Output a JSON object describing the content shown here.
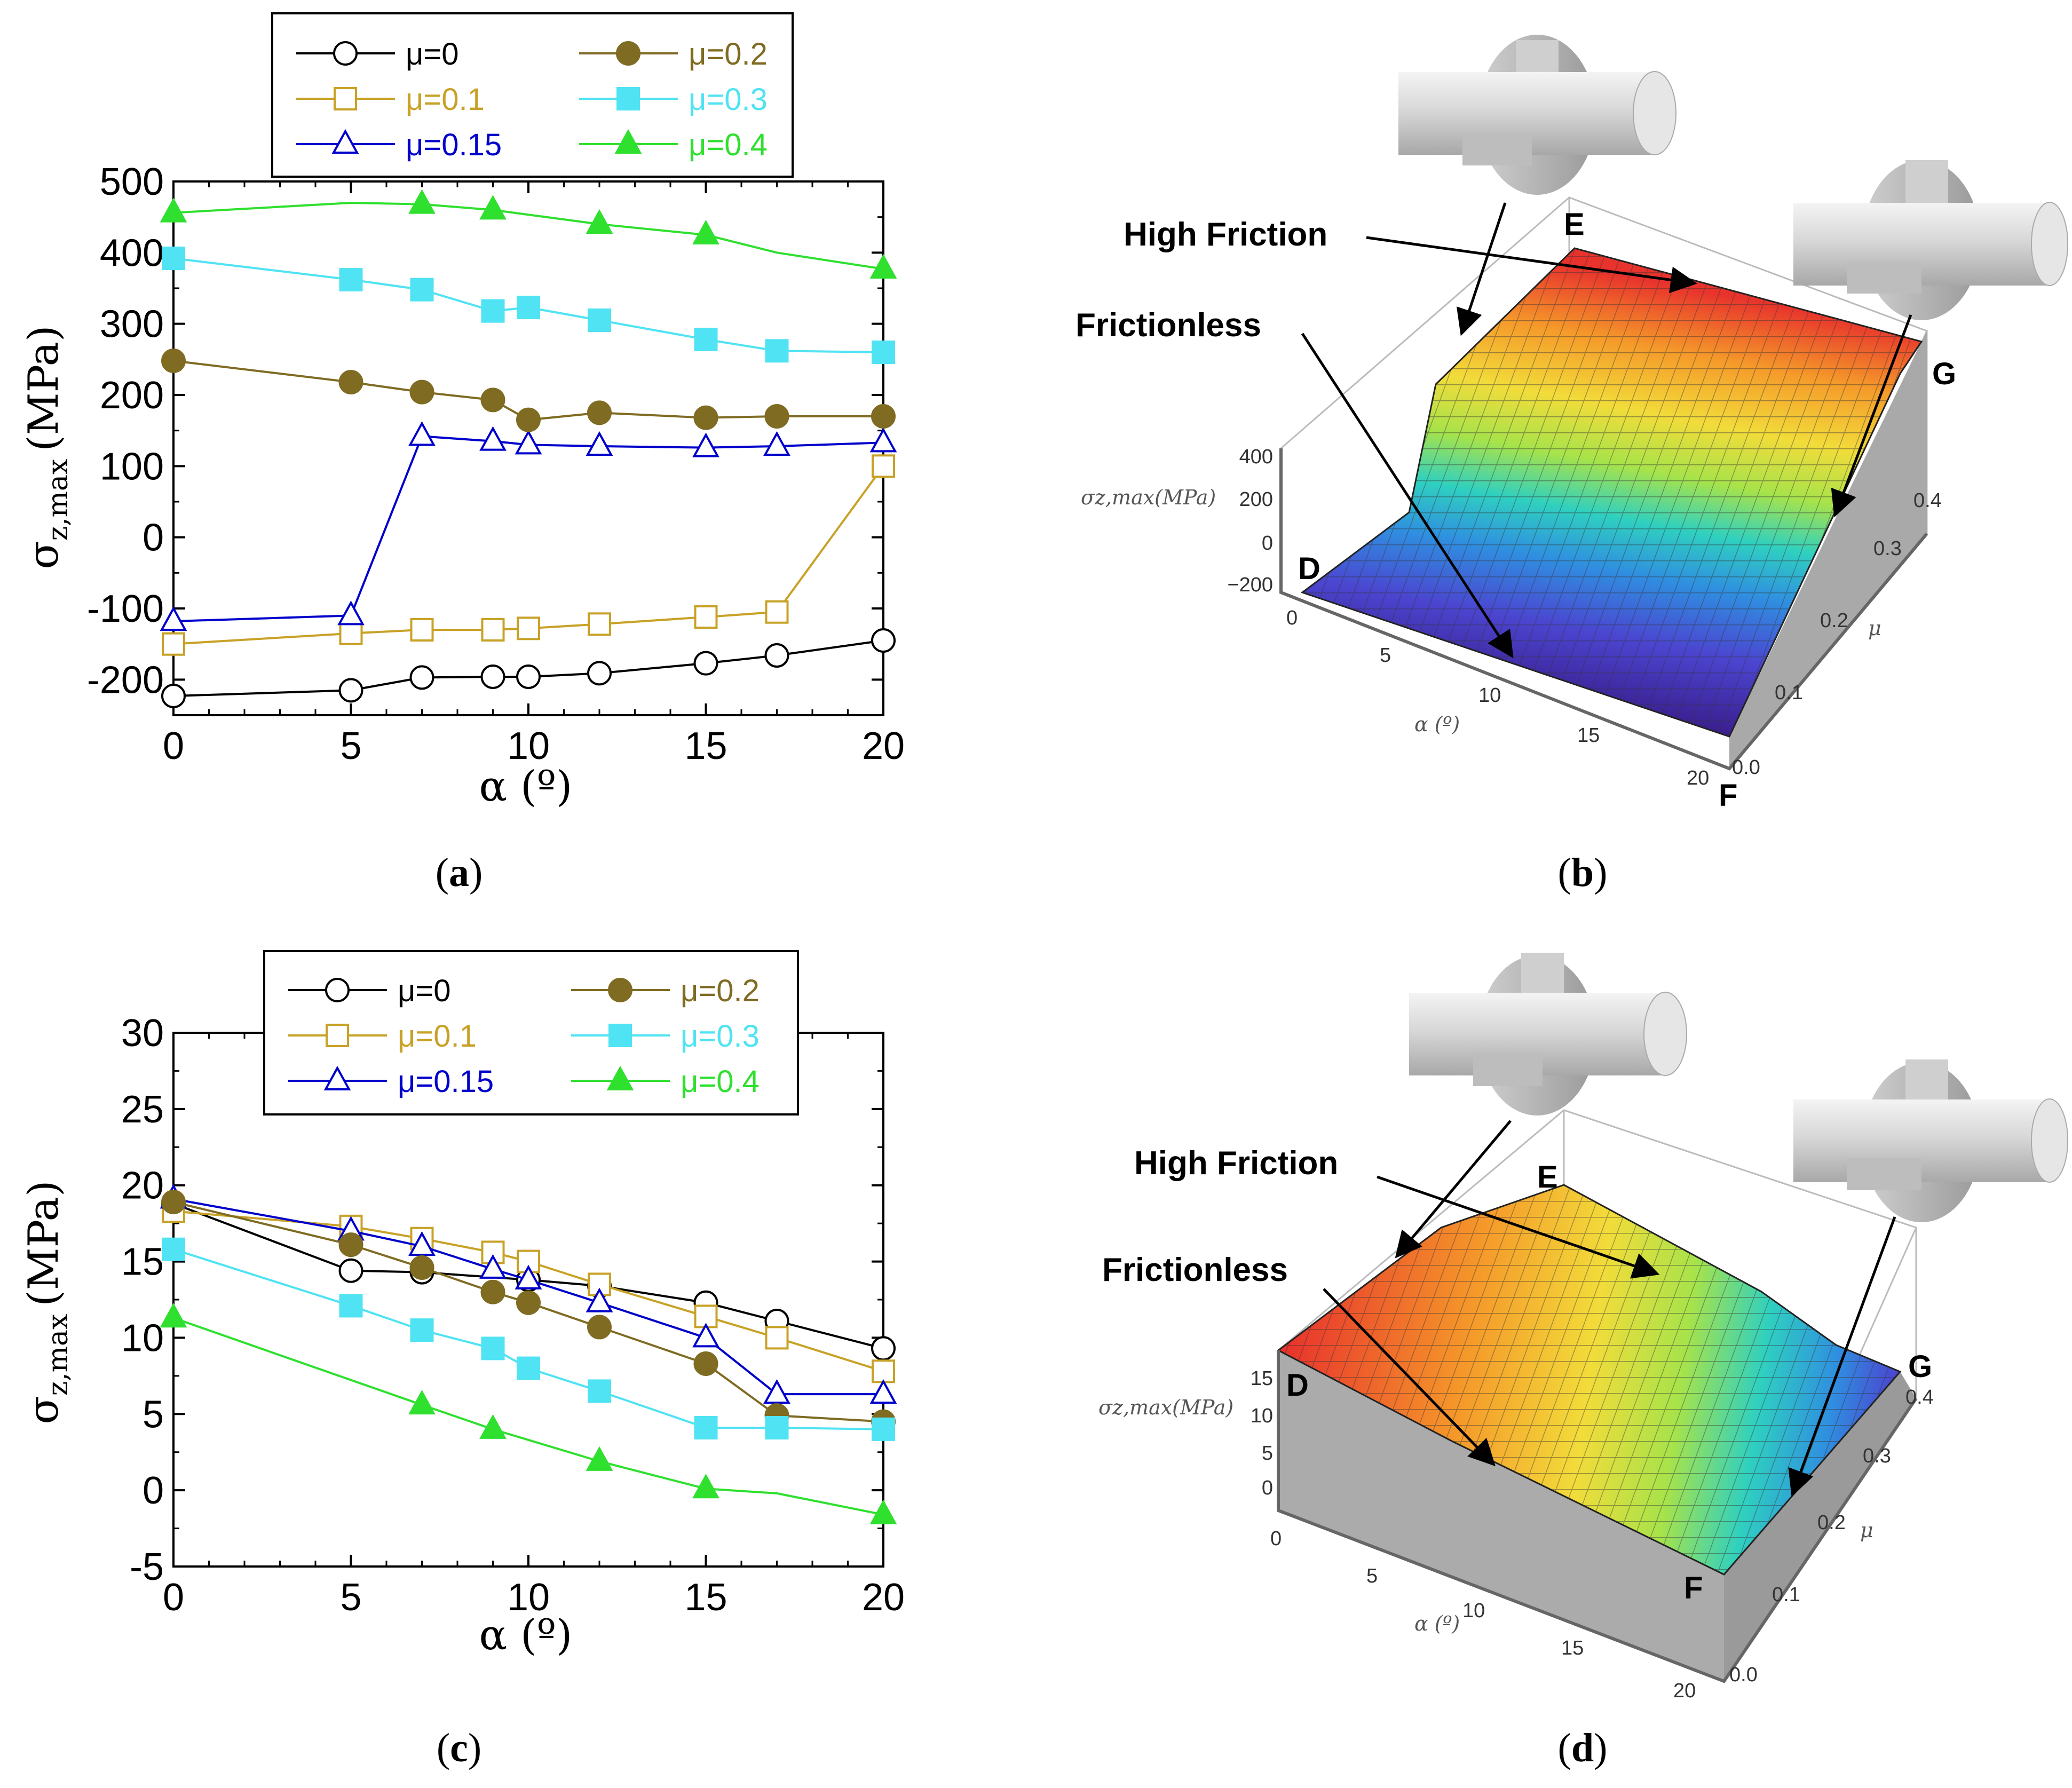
{
  "chart_data": [
    {
      "panel": "a",
      "type": "line",
      "caption": "a",
      "xlabel": "α (º)",
      "ylabel": "σ",
      "ylabel_sub": "z,max",
      "ylabel_unit": "(MPa)",
      "xlim": [
        0,
        20
      ],
      "ylim": [
        -250,
        500
      ],
      "xticks": [
        0,
        5,
        10,
        15,
        20
      ],
      "yticks": [
        -200,
        -100,
        0,
        100,
        200,
        300,
        400,
        500
      ],
      "xtick_labels": [
        "0",
        "5",
        "10",
        "15",
        "20"
      ],
      "ytick_labels": [
        "-200",
        "-100",
        "0",
        "100",
        "200",
        "300",
        "400",
        "500"
      ],
      "legend_position": "top",
      "series": [
        {
          "name": "μ=0",
          "color": "#000000",
          "marker": "circle",
          "filled": false,
          "x": [
            0,
            5,
            7,
            9,
            10,
            12,
            15,
            17,
            20
          ],
          "y": [
            -223,
            -215,
            -197,
            -196,
            -196,
            -191,
            -177,
            -166,
            -145
          ],
          "marker_x": [
            0,
            5,
            7,
            9,
            10,
            12,
            15,
            17,
            20
          ]
        },
        {
          "name": "μ=0.1",
          "color": "#C8A227",
          "marker": "square",
          "filled": false,
          "x": [
            0,
            5,
            7,
            9,
            10,
            12,
            15,
            17,
            20
          ],
          "y": [
            -150,
            -135,
            -130,
            -130,
            -128,
            -122,
            -112,
            -105,
            100
          ],
          "marker_x": [
            0,
            5,
            7,
            9,
            10,
            12,
            15,
            17,
            20
          ]
        },
        {
          "name": "μ=0.15",
          "color": "#0000CC",
          "marker": "triangle",
          "filled": false,
          "x": [
            0,
            5,
            7,
            9,
            10,
            12,
            15,
            17,
            20
          ],
          "y": [
            -118,
            -110,
            142,
            135,
            130,
            128,
            126,
            128,
            133
          ],
          "marker_x": [
            0,
            5,
            7,
            9,
            10,
            12,
            15,
            17,
            20
          ]
        },
        {
          "name": "μ=0.2",
          "color": "#7F6B22",
          "marker": "circle",
          "filled": true,
          "x": [
            0,
            5,
            7,
            9,
            10,
            12,
            15,
            17,
            20
          ],
          "y": [
            248,
            218,
            204,
            193,
            165,
            175,
            168,
            170,
            170
          ],
          "marker_x": [
            0,
            5,
            7,
            9,
            10,
            12,
            15,
            17,
            20
          ]
        },
        {
          "name": "μ=0.3",
          "color": "#4FE3F3",
          "marker": "square",
          "filled": true,
          "x": [
            0,
            5,
            7,
            9,
            10,
            12,
            15,
            17,
            20
          ],
          "y": [
            392,
            362,
            348,
            318,
            323,
            305,
            278,
            262,
            260
          ],
          "marker_x": [
            0,
            5,
            7,
            9,
            10,
            12,
            15,
            17,
            20
          ]
        },
        {
          "name": "μ=0.4",
          "color": "#2FE02F",
          "marker": "triangle",
          "filled": true,
          "x": [
            0,
            5,
            7,
            9,
            12,
            15,
            17,
            20
          ],
          "y": [
            456,
            470,
            468,
            460,
            440,
            425,
            400,
            377
          ],
          "marker_x": [
            0,
            7,
            9,
            12,
            15,
            20
          ]
        }
      ]
    },
    {
      "panel": "c",
      "type": "line",
      "caption": "c",
      "xlabel": "α (º)",
      "ylabel": "σ",
      "ylabel_sub": "z,max",
      "ylabel_unit": "(MPa)",
      "xlim": [
        0,
        20
      ],
      "ylim": [
        -5,
        30
      ],
      "xticks": [
        0,
        5,
        10,
        15,
        20
      ],
      "yticks": [
        -5,
        0,
        5,
        10,
        15,
        20,
        25,
        30
      ],
      "xtick_labels": [
        "0",
        "5",
        "10",
        "15",
        "20"
      ],
      "ytick_labels": [
        "-5",
        "0",
        "5",
        "10",
        "15",
        "20",
        "25",
        "30"
      ],
      "legend_position": "top",
      "series": [
        {
          "name": "μ=0",
          "color": "#000000",
          "marker": "circle",
          "filled": false,
          "x": [
            0,
            5,
            7,
            10,
            12,
            15,
            17,
            20
          ],
          "y": [
            18.8,
            14.4,
            14.3,
            13.8,
            13.4,
            12.3,
            11.1,
            9.3
          ],
          "marker_x": [
            0,
            5,
            7,
            10,
            12,
            15,
            17,
            20
          ]
        },
        {
          "name": "μ=0.1",
          "color": "#C8A227",
          "marker": "square",
          "filled": false,
          "x": [
            0,
            5,
            7,
            9,
            10,
            12,
            15,
            17,
            20
          ],
          "y": [
            18.3,
            17.3,
            16.5,
            15.6,
            15.0,
            13.5,
            11.4,
            10.0,
            7.8
          ],
          "marker_x": [
            0,
            5,
            7,
            9,
            10,
            12,
            15,
            17,
            20
          ]
        },
        {
          "name": "μ=0.15",
          "color": "#0000CC",
          "marker": "triangle",
          "filled": false,
          "x": [
            0,
            5,
            7,
            9,
            10,
            12,
            15,
            17,
            20
          ],
          "y": [
            19.1,
            17.0,
            16.0,
            14.5,
            13.8,
            12.3,
            10.0,
            6.3,
            6.3
          ],
          "marker_x": [
            0,
            5,
            7,
            9,
            10,
            12,
            15,
            17,
            20
          ]
        },
        {
          "name": "μ=0.2",
          "color": "#7F6B22",
          "marker": "circle",
          "filled": true,
          "x": [
            0,
            5,
            7,
            9,
            10,
            12,
            15,
            17,
            20
          ],
          "y": [
            18.9,
            16.1,
            14.6,
            13.0,
            12.3,
            10.7,
            8.3,
            4.9,
            4.5
          ],
          "marker_x": [
            0,
            5,
            7,
            9,
            10,
            12,
            15,
            17,
            20
          ]
        },
        {
          "name": "μ=0.3",
          "color": "#4FE3F3",
          "marker": "square",
          "filled": true,
          "x": [
            0,
            5,
            7,
            9,
            10,
            12,
            15,
            17,
            20
          ],
          "y": [
            15.8,
            12.1,
            10.5,
            9.3,
            8.0,
            6.5,
            4.1,
            4.1,
            4.0
          ],
          "marker_x": [
            0,
            5,
            7,
            9,
            10,
            12,
            15,
            17,
            20
          ]
        },
        {
          "name": "μ=0.4",
          "color": "#2FE02F",
          "marker": "triangle",
          "filled": true,
          "x": [
            0,
            7,
            9,
            12,
            15,
            17,
            20
          ],
          "y": [
            11.3,
            5.6,
            4.0,
            1.9,
            0.1,
            -0.2,
            -1.6
          ],
          "marker_x": [
            0,
            7,
            9,
            12,
            15,
            20
          ]
        }
      ]
    }
  ],
  "surface_b": {
    "caption": "b",
    "annotation_high": "High Friction",
    "annotation_low": "Frictionless",
    "corner_d": "D",
    "corner_e": "E",
    "corner_f": "F",
    "corner_g": "G",
    "zlabel": "σz,max(MPa)",
    "ztick_labels": [
      "400",
      "200",
      "0",
      "−200"
    ],
    "alpha_label": "α (º)",
    "alpha_ticks": [
      "0",
      "5",
      "10",
      "15",
      "20"
    ],
    "mu_label": "μ",
    "mu_ticks": [
      "0.0",
      "0.1",
      "0.2",
      "0.3",
      "0.4"
    ]
  },
  "surface_d": {
    "caption": "d",
    "annotation_high": "High Friction",
    "annotation_low": "Frictionless",
    "corner_d": "D",
    "corner_e": "E",
    "corner_f": "F",
    "corner_g": "G",
    "zlabel": "σz,max(MPa)",
    "ztick_labels": [
      "15",
      "10",
      "5",
      "0"
    ],
    "alpha_label": "α (º)",
    "alpha_ticks": [
      "0",
      "5",
      "10",
      "15",
      "20"
    ],
    "mu_label": "μ",
    "mu_ticks": [
      "0.0",
      "0.1",
      "0.2",
      "0.3",
      "0.4"
    ]
  }
}
